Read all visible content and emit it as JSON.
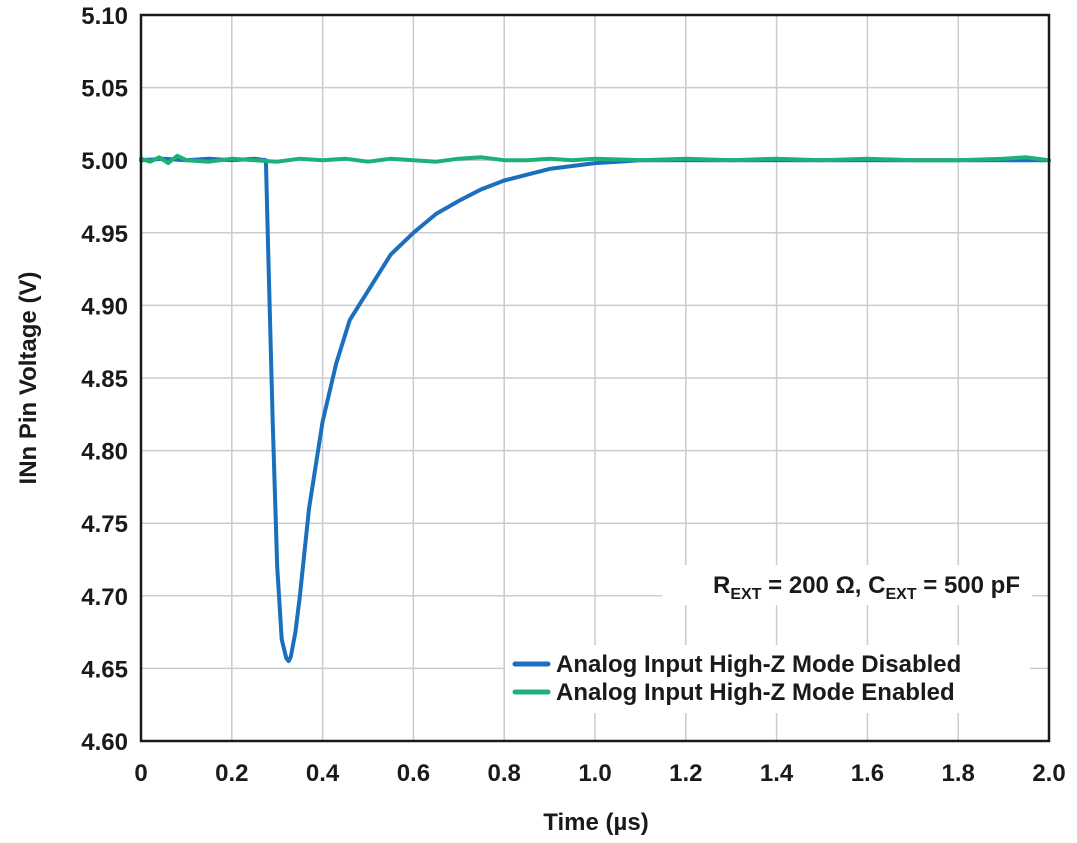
{
  "chart_data": {
    "type": "line",
    "title": "",
    "xlabel": "Time (µs)",
    "ylabel": "INn Pin Voltage (V)",
    "xlim": [
      0,
      2.0
    ],
    "ylim": [
      4.6,
      5.1
    ],
    "x_ticks": [
      "0",
      "0.2",
      "0.4",
      "0.6",
      "0.8",
      "1.0",
      "1.2",
      "1.4",
      "1.6",
      "1.8",
      "2.0"
    ],
    "y_ticks": [
      "4.60",
      "4.65",
      "4.70",
      "4.75",
      "4.80",
      "4.85",
      "4.90",
      "4.95",
      "5.00",
      "5.05",
      "5.10"
    ],
    "grid": true,
    "legend_position": "bottom-right",
    "annotation": {
      "r_main": "R",
      "r_sub": "EXT",
      "r_value": " = 200 Ω, C",
      "c_sub": "EXT",
      "c_value": " = 500 pF"
    },
    "series": [
      {
        "name": "Analog Input High-Z Mode Disabled",
        "color": "#1a6fbf",
        "x": [
          0,
          0.05,
          0.1,
          0.15,
          0.2,
          0.25,
          0.275,
          0.28,
          0.29,
          0.3,
          0.31,
          0.32,
          0.325,
          0.33,
          0.34,
          0.35,
          0.37,
          0.4,
          0.43,
          0.46,
          0.5,
          0.55,
          0.6,
          0.65,
          0.7,
          0.75,
          0.8,
          0.85,
          0.9,
          0.95,
          1.0,
          1.05,
          1.1,
          1.2,
          1.4,
          1.6,
          1.8,
          2.0
        ],
        "y": [
          5.0,
          5.001,
          5.0,
          5.001,
          5.0,
          5.001,
          5.0,
          4.94,
          4.82,
          4.72,
          4.67,
          4.657,
          4.655,
          4.658,
          4.675,
          4.7,
          4.76,
          4.82,
          4.86,
          4.89,
          4.91,
          4.935,
          4.95,
          4.963,
          4.972,
          4.98,
          4.986,
          4.99,
          4.994,
          4.996,
          4.998,
          4.999,
          5.0,
          5.0,
          5.0,
          5.0,
          5.0,
          5.0
        ]
      },
      {
        "name": "Analog Input High-Z Mode Enabled",
        "color": "#1db07a",
        "x": [
          0,
          0.02,
          0.04,
          0.06,
          0.08,
          0.1,
          0.15,
          0.2,
          0.25,
          0.3,
          0.35,
          0.4,
          0.45,
          0.5,
          0.55,
          0.6,
          0.65,
          0.7,
          0.75,
          0.8,
          0.85,
          0.9,
          0.95,
          1.0,
          1.1,
          1.2,
          1.3,
          1.4,
          1.5,
          1.6,
          1.7,
          1.8,
          1.9,
          1.95,
          2.0
        ],
        "y": [
          5.001,
          4.999,
          5.002,
          4.998,
          5.003,
          5.0,
          4.999,
          5.001,
          5.0,
          4.999,
          5.001,
          5.0,
          5.001,
          4.999,
          5.001,
          5.0,
          4.999,
          5.001,
          5.002,
          5.0,
          5.0,
          5.001,
          5.0,
          5.001,
          5.0,
          5.001,
          5.0,
          5.001,
          5.0,
          5.001,
          5.0,
          5.0,
          5.001,
          5.002,
          5.0
        ]
      }
    ]
  }
}
